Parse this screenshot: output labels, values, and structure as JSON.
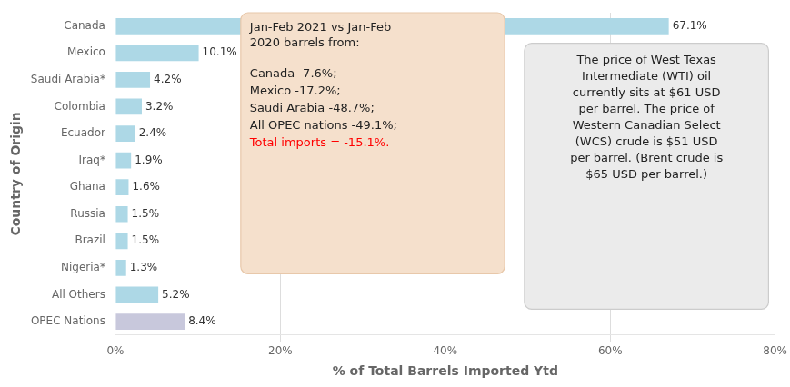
{
  "chart_data": {
    "type": "bar",
    "orientation": "horizontal",
    "categories": [
      "OPEC Nations",
      "All Others",
      "Nigeria*",
      "Brazil",
      "Russia",
      "Ghana",
      "Iraq*",
      "Ecuador",
      "Colombia",
      "Saudi Arabia*",
      "Mexico",
      "Canada"
    ],
    "values": [
      8.4,
      5.2,
      1.3,
      1.5,
      1.5,
      1.6,
      1.9,
      2.4,
      3.2,
      4.2,
      10.1,
      67.1
    ],
    "value_labels": [
      "8.4%",
      "5.2%",
      "1.3%",
      "1.5%",
      "1.5%",
      "1.6%",
      "1.9%",
      "2.4%",
      "3.2%",
      "4.2%",
      "10.1%",
      "67.1%"
    ],
    "data_labels": true,
    "colors": [
      "#c8c8dc",
      "#add8e6",
      "#add8e6",
      "#add8e6",
      "#add8e6",
      "#add8e6",
      "#add8e6",
      "#add8e6",
      "#add8e6",
      "#add8e6",
      "#add8e6",
      "#add8e6"
    ],
    "x_label": "% of Total Barrels Imported Ytd",
    "y_label": "Country of Origin",
    "xlim": [
      0,
      80
    ],
    "xticks": [
      {
        "value": 0,
        "label": "0%"
      },
      {
        "value": 20,
        "label": "20%"
      },
      {
        "value": 40,
        "label": "40%"
      },
      {
        "value": 60,
        "label": "60%"
      },
      {
        "value": 80,
        "label": "80%"
      }
    ],
    "grid": true,
    "annotations": [
      {
        "title": "Jan-Feb 2021 vs Jan-Feb\n2020 barrels from:",
        "lines": [
          {
            "text": "Canada -7.6%;"
          },
          {
            "text": "Mexico -17.2%;"
          },
          {
            "text": "Saudi Arabia -48.7%;"
          },
          {
            "text": "All OPEC nations -49.1%;"
          },
          {
            "text": "Total imports = -15.1%.",
            "color": "red"
          }
        ],
        "background": "#f5e0cc",
        "edge": "#e8c8aa"
      },
      {
        "text": "The price of West Texas\nIntermediate (WTI) oil\ncurrently sits at $61 USD\nper barrel. The price of\nWestern Canadian Select\n(WCS) crude is $51 USD\nper barrel. (Brent crude is\n$65 USD per barrel.)",
        "background": "#ebebeb",
        "edge": "#cccccc"
      }
    ]
  }
}
